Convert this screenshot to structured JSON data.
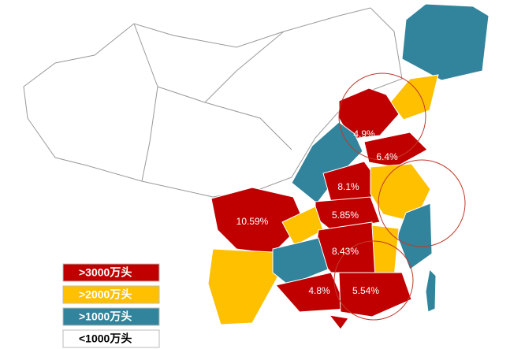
{
  "map": {
    "region_labels": [
      "4.9%",
      "6.4%",
      "8.1%",
      "5.85%",
      "10.59%",
      "8.43%",
      "4.8%",
      "5.54%"
    ],
    "legend": [
      {
        "label": ">3000万头",
        "color": "#c00000"
      },
      {
        "label": ">2000万头",
        "color": "#ffc000"
      },
      {
        "label": ">1000万头",
        "color": "#31849b"
      },
      {
        "label": "<1000万头",
        "color": "#ffffff"
      }
    ]
  }
}
